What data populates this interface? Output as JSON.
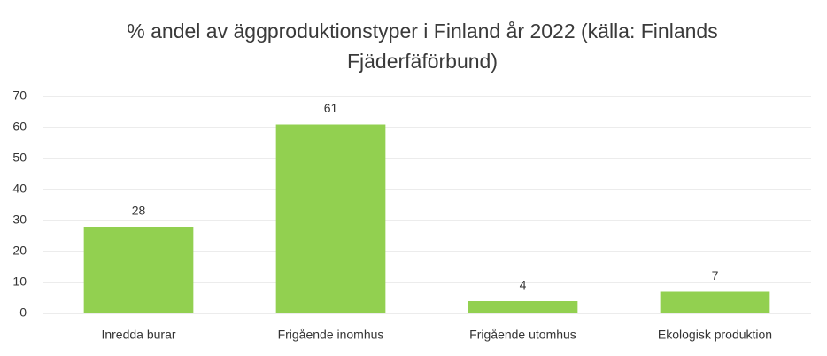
{
  "chart_data": {
    "type": "bar",
    "title": "% andel av äggproduktionstyper i Finland år 2022 (källa: Finlands Fjäderfäförbund)",
    "categories": [
      "Inredda burar",
      "Frigående inomhus",
      "Frigående utomhus",
      "Ekologisk produktion"
    ],
    "values": [
      28,
      61,
      4,
      7
    ],
    "color": "#92d050",
    "ylim": [
      0,
      70
    ],
    "yticks": [
      0,
      10,
      20,
      30,
      40,
      50,
      60,
      70
    ],
    "grid": true,
    "data_labels": true
  }
}
